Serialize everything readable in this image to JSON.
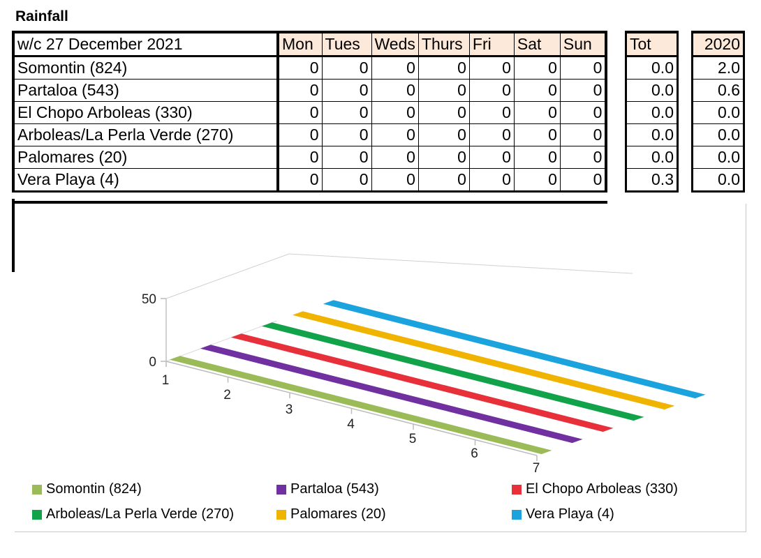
{
  "title": "Rainfall",
  "table": {
    "week_label": "w/c 27 December 2021",
    "days": [
      "Mon",
      "Tues",
      "Weds",
      "Thurs",
      "Fri",
      "Sat",
      "Sun"
    ],
    "tot_label": "Tot",
    "prev_year_label": "2020",
    "rows": [
      {
        "name": "Somontin (824)",
        "days": [
          "0",
          "0",
          "0",
          "0",
          "0",
          "0",
          "0"
        ],
        "tot": "0.0",
        "prev": "2.0"
      },
      {
        "name": "Partaloa (543)",
        "days": [
          "0",
          "0",
          "0",
          "0",
          "0",
          "0",
          "0"
        ],
        "tot": "0.0",
        "prev": "0.6"
      },
      {
        "name": "El Chopo Arboleas (330)",
        "days": [
          "0",
          "0",
          "0",
          "0",
          "0",
          "0",
          "0"
        ],
        "tot": "0.0",
        "prev": "0.0"
      },
      {
        "name": "Arboleas/La Perla Verde (270)",
        "days": [
          "0",
          "0",
          "0",
          "0",
          "0",
          "0",
          "0"
        ],
        "tot": "0.0",
        "prev": "0.0"
      },
      {
        "name": "Palomares (20)",
        "days": [
          "0",
          "0",
          "0",
          "0",
          "0",
          "0",
          "0"
        ],
        "tot": "0.0",
        "prev": "0.0"
      },
      {
        "name": "Vera Playa (4)",
        "days": [
          "0",
          "0",
          "0",
          "0",
          "0",
          "0",
          "0"
        ],
        "tot": "0.3",
        "prev": "0.0"
      }
    ]
  },
  "chart_data": {
    "type": "area",
    "style": "3d",
    "categories": [
      "1",
      "2",
      "3",
      "4",
      "5",
      "6",
      "7"
    ],
    "y_ticks": [
      "0",
      "50"
    ],
    "ylim": [
      0,
      50
    ],
    "grid": false,
    "legend_position": "bottom",
    "series": [
      {
        "name": "Somontin (824)",
        "values": [
          0,
          0,
          0,
          0,
          0,
          0,
          0
        ],
        "color": "#9bbb59"
      },
      {
        "name": "Partaloa (543)",
        "values": [
          0,
          0,
          0,
          0,
          0,
          0,
          0
        ],
        "color": "#7030a0"
      },
      {
        "name": "El Chopo Arboleas (330)",
        "values": [
          0,
          0,
          0,
          0,
          0,
          0,
          0
        ],
        "color": "#e8303a"
      },
      {
        "name": "Arboleas/La Perla Verde (270)",
        "values": [
          0,
          0,
          0,
          0,
          0,
          0,
          0
        ],
        "color": "#12a34a"
      },
      {
        "name": "Palomares (20)",
        "values": [
          0,
          0,
          0,
          0,
          0,
          0,
          0
        ],
        "color": "#f0b400"
      },
      {
        "name": "Vera Playa (4)",
        "values": [
          0,
          0,
          0,
          0,
          0,
          0,
          0
        ],
        "color": "#1aa3dd"
      }
    ]
  }
}
